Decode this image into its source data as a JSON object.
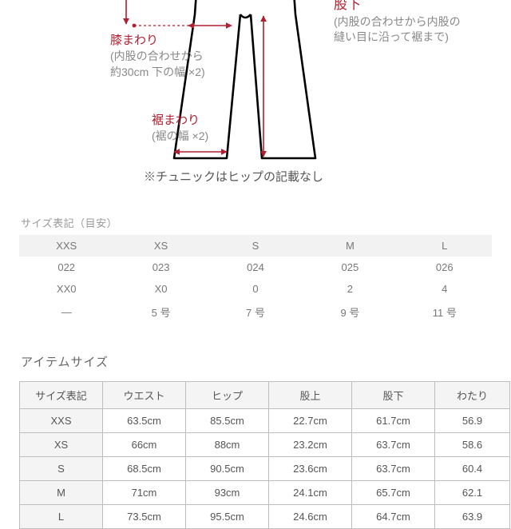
{
  "colors": {
    "accent_red": "#b02030",
    "annot_gray": "#888888",
    "table_border": "#bdbdbd",
    "table_header_bg": "#f4f4f4",
    "bg": "#ffffff"
  },
  "diagram": {
    "knee": {
      "title": "膝まわり",
      "desc": "(内股の合わせから\n約30cm 下の幅 ×2)"
    },
    "hem": {
      "title": "裾まわり",
      "desc": "(裾の幅 ×2)"
    },
    "inseam": {
      "title": "股下",
      "desc": "(内股の合わせから内股の\n縫い目に沿って裾まで)"
    },
    "tunic_note": "※チュニックはヒップの記載なし"
  },
  "size_codes": {
    "title": "サイズ表記（目安）",
    "headers": [
      "XXS",
      "XS",
      "S",
      "M",
      "L"
    ],
    "rows": [
      [
        "022",
        "023",
        "024",
        "025",
        "026"
      ],
      [
        "XX0",
        "X0",
        "0",
        "2",
        "4"
      ],
      [
        "—",
        "5 号",
        "7 号",
        "9 号",
        "11 号"
      ]
    ]
  },
  "item_size": {
    "title": "アイテムサイズ",
    "headers": [
      "サイズ表記",
      "ウエスト",
      "ヒップ",
      "股上",
      "股下",
      "わたり"
    ],
    "rows": [
      [
        "XXS",
        "63.5cm",
        "85.5cm",
        "22.7cm",
        "61.7cm",
        "56.9"
      ],
      [
        "XS",
        "66cm",
        "88cm",
        "23.2cm",
        "63.7cm",
        "58.6"
      ],
      [
        "S",
        "68.5cm",
        "90.5cm",
        "23.6cm",
        "63.7cm",
        "60.4"
      ],
      [
        "M",
        "71cm",
        "93cm",
        "24.1cm",
        "65.7cm",
        "62.1"
      ],
      [
        "L",
        "73.5cm",
        "95.5cm",
        "24.6cm",
        "64.7cm",
        "63.9"
      ]
    ]
  }
}
